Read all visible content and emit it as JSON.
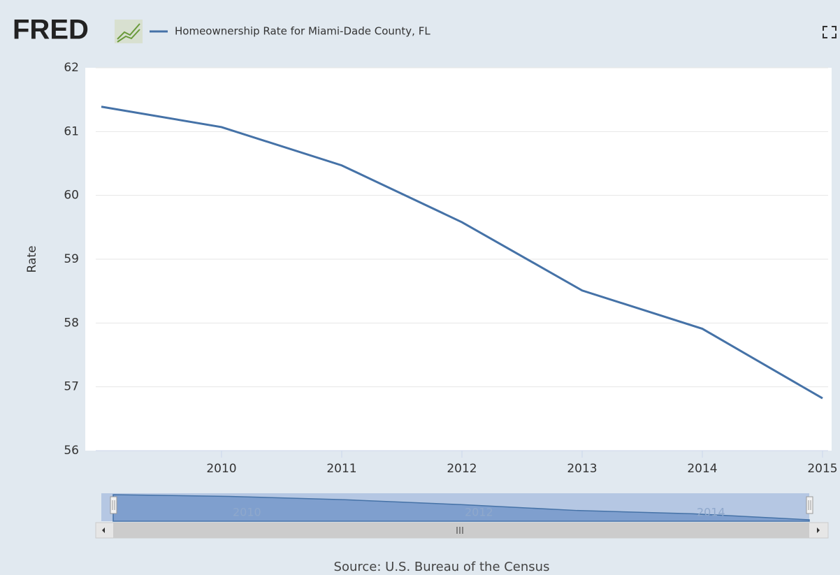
{
  "header": {
    "logo": "FRED"
  },
  "chart_data": {
    "type": "line",
    "series": [
      {
        "name": "Homeownership Rate for Miami-Dade County, FL",
        "color": "#4572a7",
        "values": [
          61.39,
          61.07,
          60.47,
          59.58,
          58.51,
          57.91,
          56.82
        ]
      }
    ],
    "x": [
      2009,
      2010,
      2011,
      2012,
      2013,
      2014,
      2015
    ],
    "xlim": [
      2009,
      2015
    ],
    "xticks": [
      2010,
      2011,
      2012,
      2013,
      2014,
      2015
    ],
    "ylim": [
      56,
      62
    ],
    "yticks": [
      56,
      57,
      58,
      59,
      60,
      61,
      62
    ],
    "y_label": "Rate",
    "grid": true,
    "navigator": {
      "xticks": [
        2010,
        2012,
        2014
      ]
    },
    "source": "Source: U.S. Bureau of the Census"
  }
}
